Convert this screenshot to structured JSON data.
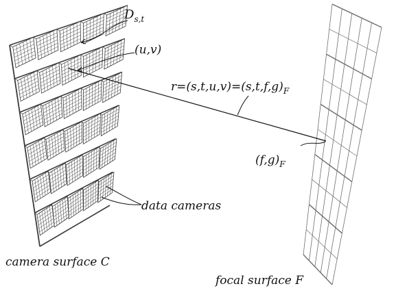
{
  "labels": {
    "ray_top": "D",
    "ray_top_sub": "s,t",
    "uv": "(u,v)",
    "ray_eq": "r=(s,t,u,v)=(s,t,f,g)",
    "ray_eq_sub": "F",
    "fg": "(f,g)",
    "fg_sub": "F",
    "data_cameras": "data cameras",
    "camera_surface": "camera surface C",
    "focal_surface": "focal surface F"
  },
  "colors": {
    "ink": "#111111",
    "grid": "#6e6e6e",
    "frame": "#3a3a3a"
  }
}
